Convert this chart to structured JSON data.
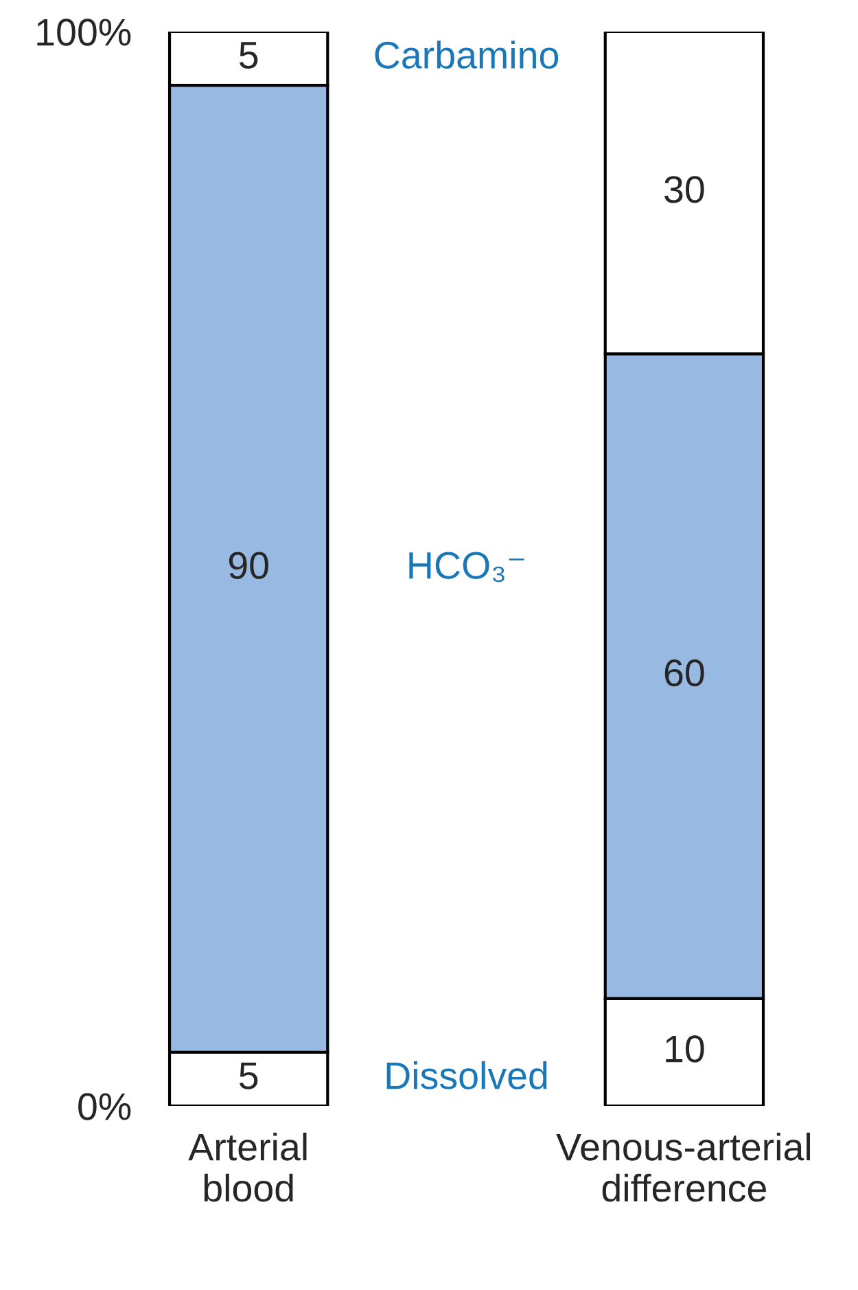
{
  "chart_data": {
    "type": "bar",
    "stacked": true,
    "categories": [
      "Arterial\nblood",
      "Venous-arterial\ndifference"
    ],
    "series": [
      {
        "name": "Dissolved",
        "color": "#ffffff",
        "values": [
          5,
          10
        ]
      },
      {
        "name": "HCO₃⁻",
        "color": "#98b9e2",
        "values": [
          90,
          60
        ]
      },
      {
        "name": "Carbamino",
        "color": "#ffffff",
        "values": [
          5,
          30
        ]
      }
    ],
    "ylim": [
      0,
      100
    ],
    "yticks": [
      {
        "value": 0,
        "label": "0%"
      },
      {
        "value": 100,
        "label": "100%"
      }
    ],
    "data_labels": true,
    "grid": false,
    "legend": false
  }
}
